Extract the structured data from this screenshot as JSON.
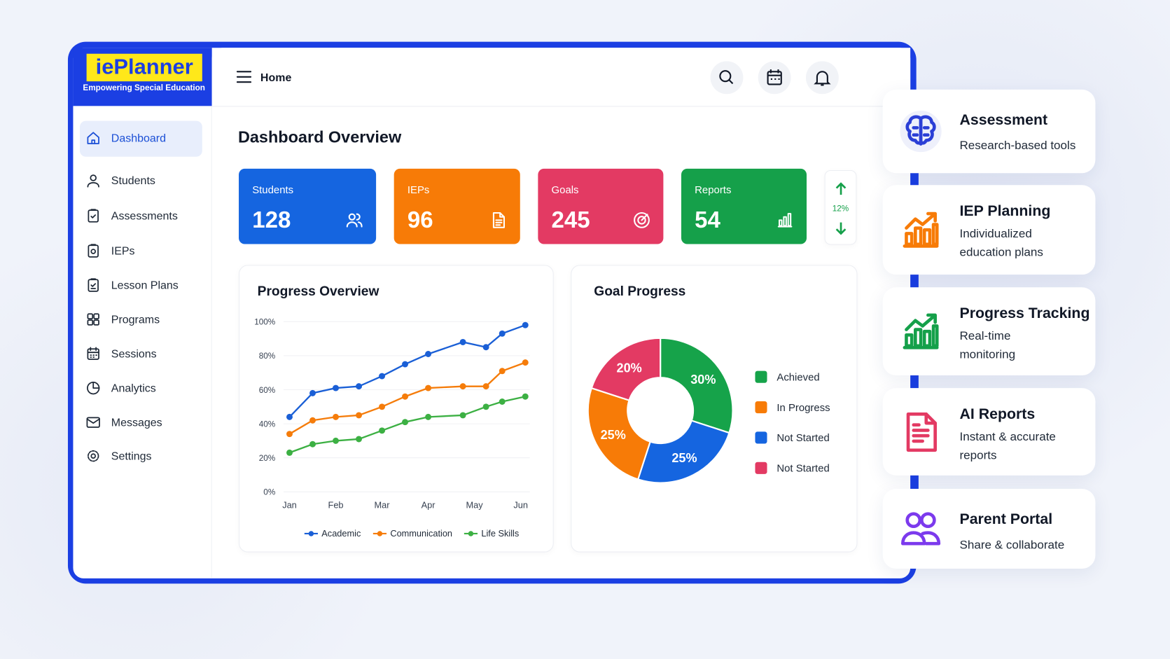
{
  "brand": {
    "name": "iePlanner",
    "tagline": "Empowering Special Education"
  },
  "header": {
    "title": "Home"
  },
  "nav": {
    "items": [
      "Dashboard",
      "Students",
      "Assessments",
      "IEPs",
      "Lesson Plans",
      "Programs",
      "Sessions",
      "Analytics",
      "Messages",
      "Settings"
    ],
    "active": 0
  },
  "page_title": "Dashboard Overview",
  "stats": [
    {
      "label": "Students",
      "value": 128,
      "color": "#1565e0"
    },
    {
      "label": "IEPs",
      "value": 96,
      "color": "#f77b07"
    },
    {
      "label": "Goals",
      "value": 245,
      "color": "#e33a63"
    },
    {
      "label": "Reports",
      "value": 54,
      "color": "#15a04a"
    }
  ],
  "trend": "12%",
  "chart_data": [
    {
      "type": "line",
      "title": "Progress Overview",
      "x": [
        0,
        0.5,
        1,
        1.5,
        2,
        2.5,
        3,
        3.75,
        4.25,
        4.6,
        5.1
      ],
      "xlim": [
        0,
        5.1
      ],
      "xticks": [
        {
          "value": 0,
          "label": "Jan"
        },
        {
          "value": 1,
          "label": "Feb"
        },
        {
          "value": 2,
          "label": "Mar"
        },
        {
          "value": 3,
          "label": "Apr"
        },
        {
          "value": 4,
          "label": "May"
        },
        {
          "value": 5,
          "label": "Jun"
        }
      ],
      "ylim": [
        0,
        100
      ],
      "yticks": [
        {
          "value": 0,
          "label": "0%"
        },
        {
          "value": 20,
          "label": "20%"
        },
        {
          "value": 40,
          "label": "40%"
        },
        {
          "value": 60,
          "label": "60%"
        },
        {
          "value": 80,
          "label": "80%"
        },
        {
          "value": 100,
          "label": "100%"
        }
      ],
      "grid": true,
      "series": [
        {
          "name": "Academic",
          "color": "#1a5fd6",
          "values": [
            44,
            58,
            61,
            62,
            68,
            75,
            81,
            88,
            85,
            93,
            98
          ]
        },
        {
          "name": "Communication",
          "color": "#f57c0a",
          "values": [
            34,
            42,
            44,
            45,
            50,
            56,
            61,
            62,
            62,
            71,
            76
          ]
        },
        {
          "name": "Life Skills",
          "color": "#3cb043",
          "values": [
            23,
            28,
            30,
            31,
            36,
            41,
            44,
            45,
            50,
            53,
            56
          ]
        }
      ]
    },
    {
      "type": "pie",
      "title": "Goal Progress",
      "values": [
        30,
        25,
        25,
        20
      ],
      "value_labels": [
        "30%",
        "25%",
        "25%",
        "20%"
      ],
      "colors": [
        "#16a34a",
        "#1565e0",
        "#f77b07",
        "#e33a63"
      ],
      "legend": [
        {
          "name": "Achieved",
          "color": "#16a34a"
        },
        {
          "name": "In Progress",
          "color": "#f77b07"
        },
        {
          "name": "Not Started",
          "color": "#1565e0"
        },
        {
          "name": "Not Started",
          "color": "#e33a63"
        }
      ]
    }
  ],
  "features": [
    {
      "title": "Assessment",
      "description": "Research-based tools",
      "color": "#2b3fd6"
    },
    {
      "title": "IEP Planning",
      "description": "Individualized education plans",
      "color": "#f77b07"
    },
    {
      "title": "Progress Tracking",
      "description": "Real-time monitoring",
      "color": "#15a04a"
    },
    {
      "title": "AI Reports",
      "description": "Instant & accurate reports",
      "color": "#e33a63"
    },
    {
      "title": "Parent Portal",
      "description": "Share & collaborate",
      "color": "#7c3aed"
    }
  ]
}
